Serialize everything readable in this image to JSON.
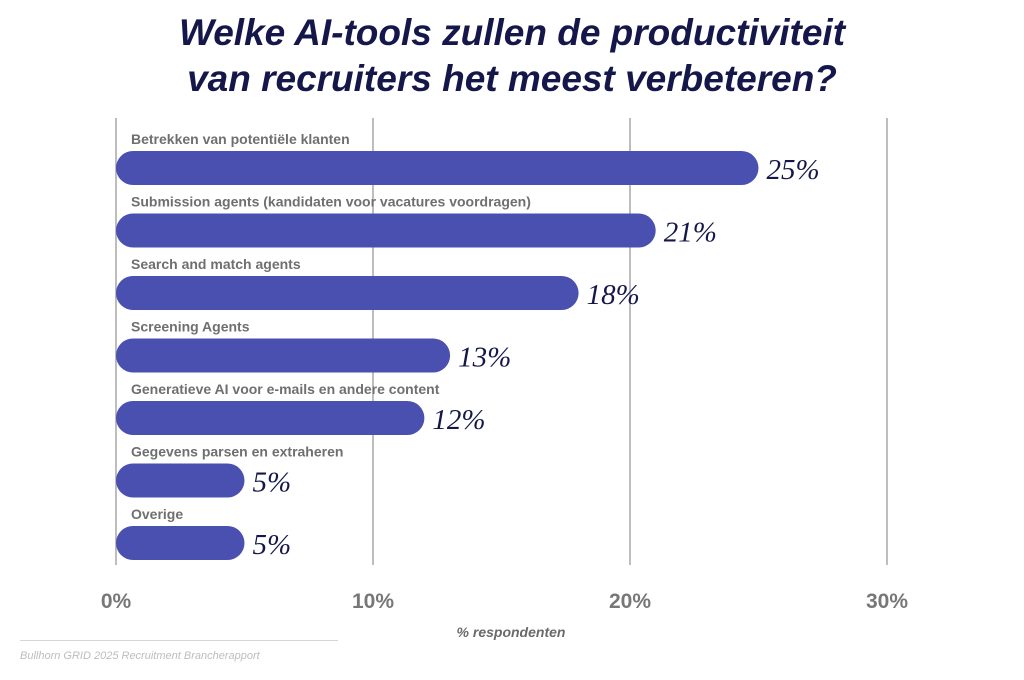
{
  "chart_data": {
    "type": "bar",
    "orientation": "horizontal",
    "title": [
      "Welke AI-tools zullen de productiviteit",
      "van recruiters het meest verbeteren?"
    ],
    "categories": [
      "Betrekken van potentiële klanten",
      "Submission agents (kandidaten voor vacatures voordragen)",
      "Search and match agents",
      "Screening Agents",
      "Generatieve AI voor e-mails en andere content",
      "Gegevens parsen en extraheren",
      "Overige"
    ],
    "values": [
      25,
      21,
      18,
      13,
      12,
      5,
      5
    ],
    "value_suffix": "%",
    "xlabel": "% respondenten",
    "xlim": [
      0,
      30
    ],
    "xticks": [
      0,
      10,
      20,
      30
    ],
    "xtick_labels": [
      "0%",
      "10%",
      "20%",
      "30%"
    ],
    "grid": true,
    "colors": {
      "bar": "#4a50b0",
      "title": "#15174a",
      "value": "#15174a",
      "label": "#6f6f6f",
      "grid": "#9a9a9a"
    }
  },
  "source": "Bullhorn GRID 2025 Recruitment Brancherapport"
}
